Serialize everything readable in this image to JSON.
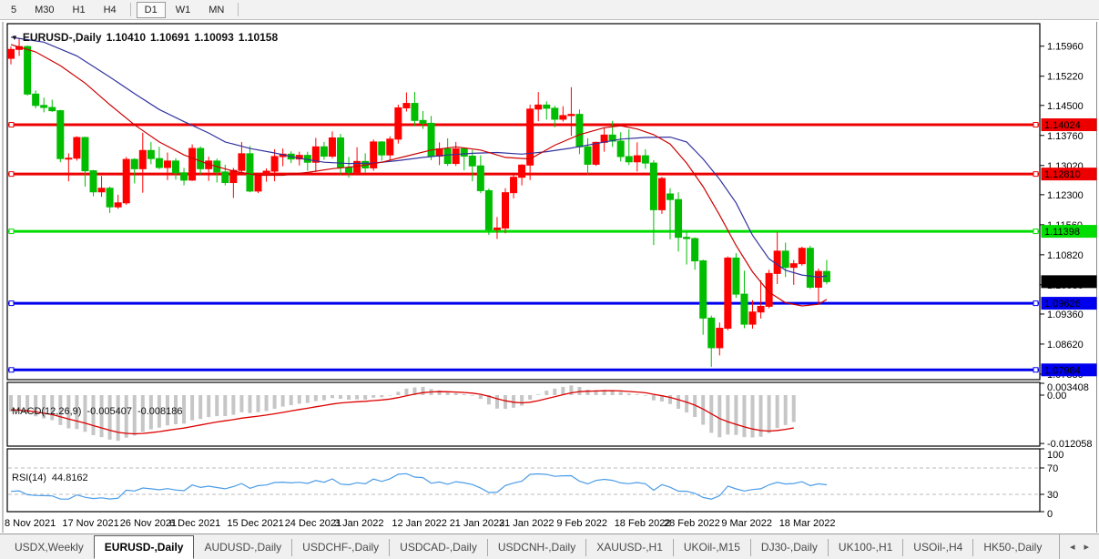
{
  "toolbar": {
    "timeframes": [
      "5",
      "M30",
      "H1",
      "H4",
      "|",
      "D1",
      "W1",
      "MN",
      "|"
    ],
    "active_timeframe": "D1"
  },
  "chart_title": {
    "dropdown": "▼",
    "symbol": "EURUSD-,Daily",
    "open": "1.10410",
    "high": "1.10691",
    "low": "1.10093",
    "close": "1.10158"
  },
  "chart_data": {
    "type": "candlestick",
    "symbol": "EURUSD-",
    "timeframe": "Daily",
    "price_axis": {
      "min": 1.07766,
      "max": 1.16492,
      "ticks": [
        1.1596,
        1.1522,
        1.145,
        1.1376,
        1.1302,
        1.123,
        1.1156,
        1.1082,
        1.1008,
        1.0936,
        1.0862,
        1.0788
      ]
    },
    "dates": [
      {
        "label": "8 Nov 2021",
        "index": 0
      },
      {
        "label": "17 Nov 2021",
        "index": 7
      },
      {
        "label": "26 Nov 2021",
        "index": 14
      },
      {
        "label": "6 Dec 2021",
        "index": 20
      },
      {
        "label": "15 Dec 2021",
        "index": 27
      },
      {
        "label": "24 Dec 2021",
        "index": 34
      },
      {
        "label": "3 Jan 2022",
        "index": 40
      },
      {
        "label": "12 Jan 2022",
        "index": 47
      },
      {
        "label": "21 Jan 2022",
        "index": 54
      },
      {
        "label": "31 Jan 2022",
        "index": 60
      },
      {
        "label": "9 Feb 2022",
        "index": 67
      },
      {
        "label": "18 Feb 2022",
        "index": 74
      },
      {
        "label": "28 Feb 2022",
        "index": 80
      },
      {
        "label": "9 Mar 2022",
        "index": 87
      },
      {
        "label": "18 Mar 2022",
        "index": 94
      }
    ],
    "candles": [
      [
        1.1566,
        1.1595,
        1.1551,
        1.1588
      ],
      [
        1.1588,
        1.1617,
        1.1572,
        1.1595
      ],
      [
        1.1595,
        1.1598,
        1.1474,
        1.1478
      ],
      [
        1.1478,
        1.1487,
        1.1443,
        1.145
      ],
      [
        1.145,
        1.1469,
        1.1433,
        1.1445
      ],
      [
        1.1445,
        1.1464,
        1.1434,
        1.1437
      ],
      [
        1.1437,
        1.1439,
        1.131,
        1.1319
      ],
      [
        1.1319,
        1.1332,
        1.1263,
        1.132
      ],
      [
        1.132,
        1.1374,
        1.1314,
        1.1371
      ],
      [
        1.1371,
        1.1373,
        1.125,
        1.1289
      ],
      [
        1.1289,
        1.1291,
        1.1226,
        1.1237
      ],
      [
        1.1237,
        1.1276,
        1.1225,
        1.1246
      ],
      [
        1.1246,
        1.125,
        1.1185,
        1.12
      ],
      [
        1.12,
        1.123,
        1.1195,
        1.121
      ],
      [
        1.121,
        1.1323,
        1.1205,
        1.1317
      ],
      [
        1.1317,
        1.132,
        1.1258,
        1.1294
      ],
      [
        1.1294,
        1.1383,
        1.1235,
        1.1339
      ],
      [
        1.1339,
        1.136,
        1.1305,
        1.1319
      ],
      [
        1.1319,
        1.1348,
        1.1293,
        1.1297
      ],
      [
        1.1297,
        1.1334,
        1.1266,
        1.1313
      ],
      [
        1.1313,
        1.132,
        1.1267,
        1.1284
      ],
      [
        1.1284,
        1.1296,
        1.1253,
        1.1266
      ],
      [
        1.1266,
        1.1354,
        1.1264,
        1.1344
      ],
      [
        1.1344,
        1.1349,
        1.128,
        1.1294
      ],
      [
        1.1294,
        1.1324,
        1.1264,
        1.1313
      ],
      [
        1.1313,
        1.1319,
        1.126,
        1.1286
      ],
      [
        1.1286,
        1.1304,
        1.1253,
        1.126
      ],
      [
        1.126,
        1.1296,
        1.1222,
        1.129
      ],
      [
        1.129,
        1.136,
        1.1282,
        1.1331
      ],
      [
        1.1331,
        1.135,
        1.1236,
        1.1239
      ],
      [
        1.1239,
        1.1282,
        1.1234,
        1.1278
      ],
      [
        1.1278,
        1.1295,
        1.1262,
        1.1288
      ],
      [
        1.1288,
        1.1342,
        1.1263,
        1.1324
      ],
      [
        1.1324,
        1.1344,
        1.13,
        1.133
      ],
      [
        1.133,
        1.1337,
        1.1308,
        1.1318
      ],
      [
        1.1318,
        1.1336,
        1.1302,
        1.1327
      ],
      [
        1.1327,
        1.1336,
        1.1289,
        1.131
      ],
      [
        1.131,
        1.137,
        1.1286,
        1.1348
      ],
      [
        1.1348,
        1.136,
        1.1316,
        1.1325
      ],
      [
        1.1325,
        1.1386,
        1.132,
        1.137
      ],
      [
        1.137,
        1.138,
        1.1279,
        1.1297
      ],
      [
        1.1297,
        1.1323,
        1.1272,
        1.1285
      ],
      [
        1.1285,
        1.1347,
        1.128,
        1.1312
      ],
      [
        1.1312,
        1.1332,
        1.1285,
        1.1296
      ],
      [
        1.1296,
        1.1366,
        1.1289,
        1.136
      ],
      [
        1.136,
        1.1362,
        1.1314,
        1.1328
      ],
      [
        1.1328,
        1.1374,
        1.1315,
        1.1367
      ],
      [
        1.1367,
        1.1452,
        1.1356,
        1.1444
      ],
      [
        1.1444,
        1.1482,
        1.1435,
        1.1455
      ],
      [
        1.1455,
        1.1483,
        1.1399,
        1.1413
      ],
      [
        1.1413,
        1.1436,
        1.1392,
        1.1406
      ],
      [
        1.1406,
        1.1424,
        1.1315,
        1.1325
      ],
      [
        1.1325,
        1.1359,
        1.1303,
        1.1343
      ],
      [
        1.1343,
        1.1369,
        1.1301,
        1.1307
      ],
      [
        1.1307,
        1.136,
        1.1301,
        1.1343
      ],
      [
        1.1343,
        1.1344,
        1.129,
        1.1325
      ],
      [
        1.1325,
        1.134,
        1.1263,
        1.1301
      ],
      [
        1.1301,
        1.1327,
        1.1234,
        1.124
      ],
      [
        1.124,
        1.1245,
        1.1131,
        1.1144
      ],
      [
        1.1144,
        1.1175,
        1.1121,
        1.1148
      ],
      [
        1.1148,
        1.1246,
        1.1135,
        1.1235
      ],
      [
        1.1235,
        1.1279,
        1.1221,
        1.1273
      ],
      [
        1.1273,
        1.1305,
        1.1253,
        1.1303
      ],
      [
        1.1303,
        1.1452,
        1.1266,
        1.1441
      ],
      [
        1.1441,
        1.1483,
        1.1411,
        1.1451
      ],
      [
        1.1451,
        1.146,
        1.1415,
        1.1443
      ],
      [
        1.1443,
        1.1449,
        1.1396,
        1.1416
      ],
      [
        1.1416,
        1.1448,
        1.141,
        1.1425
      ],
      [
        1.1425,
        1.1495,
        1.1375,
        1.1428
      ],
      [
        1.1428,
        1.144,
        1.133,
        1.1348
      ],
      [
        1.1348,
        1.1369,
        1.128,
        1.1305
      ],
      [
        1.1305,
        1.1361,
        1.1301,
        1.1359
      ],
      [
        1.1359,
        1.1395,
        1.1336,
        1.1377
      ],
      [
        1.1377,
        1.1412,
        1.1348,
        1.1362
      ],
      [
        1.1362,
        1.1384,
        1.1312,
        1.1324
      ],
      [
        1.1324,
        1.1391,
        1.1303,
        1.1311
      ],
      [
        1.1311,
        1.1359,
        1.1287,
        1.1326
      ],
      [
        1.1326,
        1.1342,
        1.1294,
        1.1308
      ],
      [
        1.1308,
        1.1315,
        1.1106,
        1.1193
      ],
      [
        1.1193,
        1.1274,
        1.1183,
        1.127
      ],
      [
        1.1232,
        1.1246,
        1.112,
        1.1218
      ],
      [
        1.1218,
        1.1236,
        1.109,
        1.1125
      ],
      [
        1.1125,
        1.114,
        1.1058,
        1.1122
      ],
      [
        1.1122,
        1.1125,
        1.1045,
        1.1067
      ],
      [
        1.1067,
        1.107,
        1.0885,
        1.0926
      ],
      [
        1.0926,
        1.0932,
        1.0806,
        1.0853
      ],
      [
        1.0853,
        1.0915,
        1.0834,
        1.0901
      ],
      [
        1.0901,
        1.1078,
        1.0896,
        1.1074
      ],
      [
        1.1074,
        1.1086,
        1.0976,
        1.0985
      ],
      [
        1.0985,
        1.1043,
        1.0901,
        1.0911
      ],
      [
        1.0911,
        1.097,
        1.09,
        1.0941
      ],
      [
        1.0941,
        1.1019,
        1.0925,
        1.0955
      ],
      [
        1.0955,
        1.1045,
        1.095,
        1.1036
      ],
      [
        1.1036,
        1.1137,
        1.101,
        1.1091
      ],
      [
        1.1091,
        1.1112,
        1.1027,
        1.1051
      ],
      [
        1.1051,
        1.1069,
        1.1008,
        1.106
      ],
      [
        1.106,
        1.1102,
        1.1055,
        1.1098
      ],
      [
        1.1098,
        1.1104,
        1.0998,
        1.1002
      ],
      [
        1.1002,
        1.1048,
        1.0962,
        1.1041
      ],
      [
        1.1041,
        1.10691,
        1.10093,
        1.10158
      ]
    ],
    "hlines": [
      {
        "price": 1.14024,
        "label": "1.14024",
        "color": "#ee0000",
        "width": 3
      },
      {
        "price": 1.1281,
        "label": "1.12810",
        "color": "#ee0000",
        "width": 3
      },
      {
        "price": 1.11398,
        "label": "1.11398",
        "color": "#00dd00",
        "width": 3
      },
      {
        "price": 1.09626,
        "label": "1.09626",
        "color": "#0000ee",
        "width": 3
      },
      {
        "price": 1.07984,
        "label": "1.07984",
        "color": "#0000ee",
        "width": 3
      }
    ],
    "last_price": {
      "value": 1.10158,
      "label": "1.10158"
    },
    "ma_slow_blue": [
      [
        0,
        1.1618
      ],
      [
        4,
        1.1606
      ],
      [
        8,
        1.1572
      ],
      [
        12,
        1.152
      ],
      [
        15,
        1.1479
      ],
      [
        18,
        1.144
      ],
      [
        21,
        1.141
      ],
      [
        24,
        1.1382
      ],
      [
        26,
        1.136
      ],
      [
        29,
        1.1344
      ],
      [
        32,
        1.1333
      ],
      [
        35,
        1.132
      ],
      [
        38,
        1.131
      ],
      [
        41,
        1.1307
      ],
      [
        44,
        1.1308
      ],
      [
        47,
        1.1314
      ],
      [
        50,
        1.1322
      ],
      [
        53,
        1.1328
      ],
      [
        56,
        1.1332
      ],
      [
        59,
        1.1334
      ],
      [
        62,
        1.133
      ],
      [
        65,
        1.1336
      ],
      [
        68,
        1.1345
      ],
      [
        71,
        1.1356
      ],
      [
        74,
        1.1367
      ],
      [
        77,
        1.1371
      ],
      [
        80,
        1.1372
      ],
      [
        82,
        1.136
      ],
      [
        84,
        1.1318
      ],
      [
        86,
        1.1268
      ],
      [
        88,
        1.121
      ],
      [
        90,
        1.113
      ],
      [
        92,
        1.1072
      ],
      [
        94,
        1.1044
      ],
      [
        96,
        1.1032
      ],
      [
        98,
        1.1027
      ],
      [
        99,
        1.103
      ]
    ],
    "ma_fast_red": [
      [
        0,
        1.16
      ],
      [
        3,
        1.1582
      ],
      [
        6,
        1.1548
      ],
      [
        9,
        1.1505
      ],
      [
        12,
        1.1452
      ],
      [
        15,
        1.1402
      ],
      [
        18,
        1.136
      ],
      [
        21,
        1.1328
      ],
      [
        24,
        1.1305
      ],
      [
        27,
        1.1288
      ],
      [
        30,
        1.1278
      ],
      [
        33,
        1.1278
      ],
      [
        36,
        1.1285
      ],
      [
        39,
        1.1294
      ],
      [
        42,
        1.13
      ],
      [
        45,
        1.131
      ],
      [
        48,
        1.1325
      ],
      [
        51,
        1.134
      ],
      [
        54,
        1.1348
      ],
      [
        57,
        1.134
      ],
      [
        60,
        1.1322
      ],
      [
        63,
        1.1318
      ],
      [
        66,
        1.1352
      ],
      [
        69,
        1.1378
      ],
      [
        72,
        1.1395
      ],
      [
        74,
        1.14
      ],
      [
        76,
        1.1392
      ],
      [
        78,
        1.1378
      ],
      [
        80,
        1.1355
      ],
      [
        82,
        1.1308
      ],
      [
        84,
        1.125
      ],
      [
        86,
        1.118
      ],
      [
        88,
        1.1105
      ],
      [
        90,
        1.104
      ],
      [
        92,
        1.099
      ],
      [
        94,
        1.0964
      ],
      [
        96,
        1.0956
      ],
      [
        98,
        1.096
      ],
      [
        99,
        1.0972
      ]
    ],
    "macd": {
      "name": "MACD(12,26,9)",
      "value_main": "-0.005407",
      "value_signal": "-0.008186",
      "fast": 12,
      "slow": 26,
      "signal": 9,
      "axis_ticks": [
        {
          "v": 0.003408,
          "label": "0.003408"
        },
        {
          "v": 0.0,
          "label": "0.00"
        },
        {
          "v": -0.012058,
          "label": "-0.012058"
        }
      ],
      "draw_end_index": 95
    },
    "rsi": {
      "name": "RSI(14)",
      "value": "44.8162",
      "period": 14,
      "axis_ticks": [
        {
          "v": 100,
          "label": "100"
        },
        {
          "v": 70,
          "label": "70"
        },
        {
          "v": 30,
          "label": "30"
        },
        {
          "v": 0,
          "label": "0"
        }
      ],
      "levels": [
        70,
        30
      ]
    }
  },
  "tabs": {
    "items": [
      {
        "label": "USDX,Weekly",
        "active": false
      },
      {
        "label": "EURUSD-,Daily",
        "active": true
      },
      {
        "label": "AUDUSD-,Daily",
        "active": false
      },
      {
        "label": "USDCHF-,Daily",
        "active": false
      },
      {
        "label": "USDCAD-,Daily",
        "active": false
      },
      {
        "label": "USDCNH-,Daily",
        "active": false
      },
      {
        "label": "XAUUSD-,H1",
        "active": false
      },
      {
        "label": "UKOil-,M15",
        "active": false
      },
      {
        "label": "DJ30-,Daily",
        "active": false
      },
      {
        "label": "UK100-,H1",
        "active": false
      },
      {
        "label": "USOil-,H4",
        "active": false
      },
      {
        "label": "HK50-,Daily",
        "active": false
      }
    ],
    "scroll_left": "◂",
    "scroll_right": "▸"
  },
  "colors": {
    "bull_candle": "#ff0000",
    "bear_candle": "#00bd00",
    "ma_blue": "#3232a0",
    "ma_red": "#cc0000",
    "macd_bar": "#c6c6c6",
    "macd_signal": "#dd0000",
    "rsi_line": "#4a9ce8",
    "level_dash": "#bbbbbb",
    "last_price_bg": "#000000",
    "axis_line": "#000000"
  }
}
